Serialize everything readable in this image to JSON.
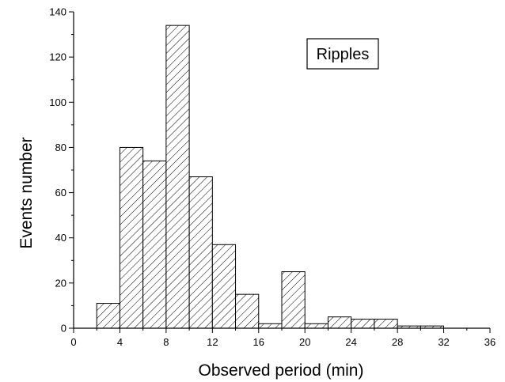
{
  "chart_data": {
    "type": "bar",
    "legend_label": "Ripples",
    "legend_position": "top-right",
    "xlabel": "Observed period (min)",
    "ylabel": "Events number",
    "xlim": [
      0,
      36
    ],
    "ylim": [
      0,
      140
    ],
    "xticks": [
      0,
      4,
      8,
      12,
      16,
      20,
      24,
      28,
      32,
      36
    ],
    "yticks": [
      0,
      20,
      40,
      60,
      80,
      100,
      120,
      140
    ],
    "bin_width": 2,
    "bins": [
      {
        "x_start": 2,
        "x_end": 4,
        "value": 11
      },
      {
        "x_start": 4,
        "x_end": 6,
        "value": 80
      },
      {
        "x_start": 6,
        "x_end": 8,
        "value": 74
      },
      {
        "x_start": 8,
        "x_end": 10,
        "value": 134
      },
      {
        "x_start": 10,
        "x_end": 12,
        "value": 67
      },
      {
        "x_start": 12,
        "x_end": 14,
        "value": 37
      },
      {
        "x_start": 14,
        "x_end": 16,
        "value": 15
      },
      {
        "x_start": 16,
        "x_end": 18,
        "value": 2
      },
      {
        "x_start": 18,
        "x_end": 20,
        "value": 25
      },
      {
        "x_start": 20,
        "x_end": 22,
        "value": 2
      },
      {
        "x_start": 22,
        "x_end": 24,
        "value": 5
      },
      {
        "x_start": 24,
        "x_end": 26,
        "value": 4
      },
      {
        "x_start": 26,
        "x_end": 28,
        "value": 4
      },
      {
        "x_start": 28,
        "x_end": 30,
        "value": 1
      },
      {
        "x_start": 30,
        "x_end": 32,
        "value": 1
      }
    ],
    "bar_fill": "hatched",
    "grid": false
  }
}
